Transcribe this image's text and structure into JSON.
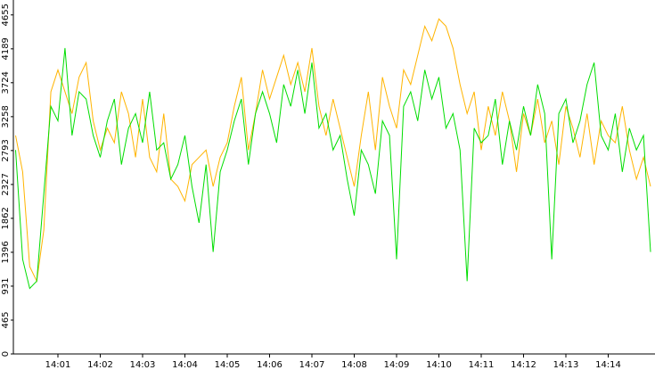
{
  "chart_data": {
    "type": "line",
    "categories": [
      null,
      null,
      null,
      null,
      null,
      null,
      "14:01",
      null,
      null,
      null,
      null,
      null,
      "14:02",
      null,
      null,
      null,
      null,
      null,
      "14:03",
      null,
      null,
      null,
      null,
      null,
      "14:04",
      null,
      null,
      null,
      null,
      null,
      "14:05",
      null,
      null,
      null,
      null,
      null,
      "14:06",
      null,
      null,
      null,
      null,
      null,
      "14:07",
      null,
      null,
      null,
      null,
      null,
      "14:08",
      null,
      null,
      null,
      null,
      null,
      "14:09",
      null,
      null,
      null,
      null,
      null,
      "14:10",
      null,
      null,
      null,
      null,
      null,
      "14:11",
      null,
      null,
      null,
      null,
      null,
      "14:12",
      null,
      null,
      null,
      null,
      null,
      "14:13",
      null,
      null,
      null,
      null,
      null,
      "14:14",
      null,
      null,
      null,
      null,
      null,
      null
    ],
    "series": [
      {
        "color": "#ffb400",
        "values": [
          3000,
          2500,
          1200,
          1000,
          1700,
          3600,
          3900,
          3600,
          3300,
          3800,
          4000,
          3200,
          2800,
          3100,
          2900,
          3600,
          3300,
          2700,
          3500,
          2700,
          2500,
          3300,
          2400,
          2300,
          2100,
          2600,
          2700,
          2800,
          2300,
          2700,
          2900,
          3400,
          3800,
          2800,
          3300,
          3900,
          3500,
          3800,
          4100,
          3700,
          4000,
          3600,
          4200,
          3400,
          3000,
          3500,
          3100,
          2700,
          2300,
          3000,
          3600,
          2800,
          3800,
          3400,
          3100,
          3900,
          3700,
          4100,
          4500,
          4300,
          4600,
          4500,
          4200,
          3700,
          3300,
          3600,
          2800,
          3400,
          3000,
          3600,
          3200,
          2500,
          3300,
          3000,
          3500,
          2900,
          3200,
          2600,
          3400,
          3100,
          2700,
          3300,
          2600,
          3200,
          3000,
          2900,
          3400,
          2800,
          2400,
          2700,
          2300
        ]
      },
      {
        "color": "#00dd00",
        "values": [
          2800,
          1300,
          900,
          1000,
          2200,
          3400,
          3200,
          4200,
          3000,
          3600,
          3500,
          3000,
          2700,
          3200,
          3500,
          2600,
          3100,
          3300,
          2900,
          3600,
          2800,
          2900,
          2400,
          2600,
          3000,
          2300,
          1800,
          2600,
          1400,
          2500,
          2800,
          3200,
          3500,
          2600,
          3300,
          3600,
          3300,
          2900,
          3700,
          3400,
          3900,
          3300,
          4000,
          3100,
          3300,
          2800,
          3000,
          2400,
          1900,
          2800,
          2600,
          2200,
          3200,
          3000,
          1300,
          3400,
          3600,
          3200,
          3900,
          3500,
          3800,
          3100,
          3300,
          2800,
          1000,
          3100,
          2900,
          3000,
          3500,
          2600,
          3200,
          2800,
          3400,
          3000,
          3700,
          3300,
          1300,
          3300,
          3500,
          2900,
          3200,
          3700,
          4000,
          3000,
          2800,
          3300,
          2500,
          3100,
          2800,
          3000,
          1400
        ]
      }
    ],
    "ylim": [
      0,
      4860
    ],
    "yticks": [
      0,
      465,
      931,
      1396,
      1862,
      2327,
      2793,
      3258,
      3724,
      4189,
      4655
    ]
  }
}
